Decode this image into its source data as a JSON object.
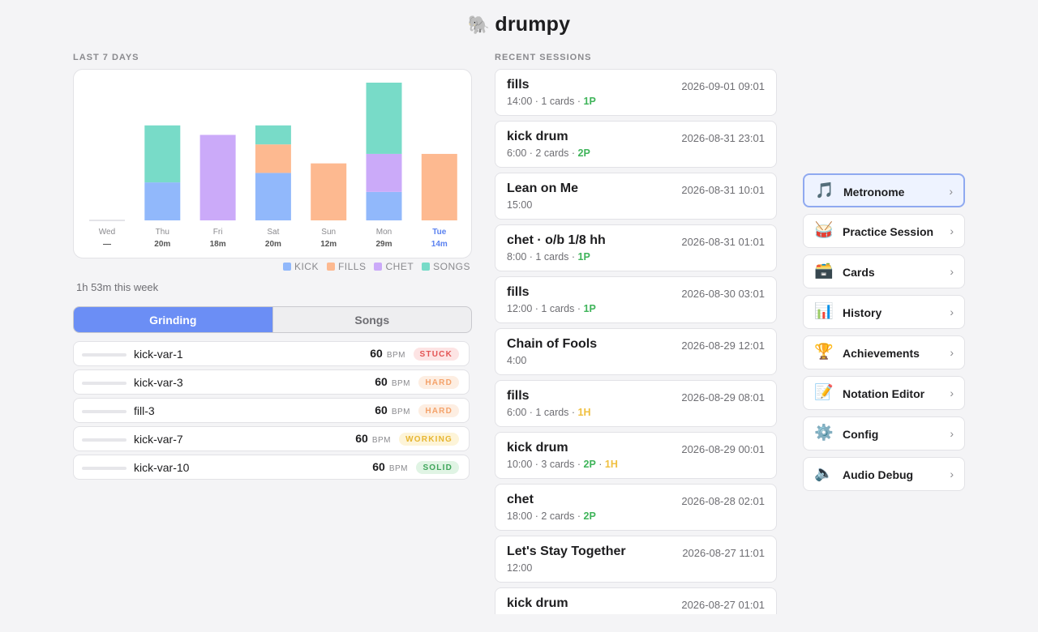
{
  "app": {
    "title": "drumpy",
    "logo_icon": "🐘"
  },
  "sections": {
    "last7": "LAST 7 DAYS",
    "recent": "RECENT SESSIONS"
  },
  "chart_data": {
    "type": "bar",
    "stacked": true,
    "categories": [
      "Wed",
      "Thu",
      "Fri",
      "Sat",
      "Sun",
      "Mon",
      "Tue"
    ],
    "totals": [
      "—",
      "20m",
      "18m",
      "20m",
      "12m",
      "29m",
      "14m"
    ],
    "highlight_category": "Tue",
    "series": [
      {
        "name": "KICK",
        "color": "#91b8fb",
        "values": [
          0,
          8,
          0,
          10,
          0,
          6,
          0
        ]
      },
      {
        "name": "FILLS",
        "color": "#fdb990",
        "values": [
          0,
          0,
          0,
          6,
          12,
          0,
          14
        ]
      },
      {
        "name": "CHET",
        "color": "#cbaaf9",
        "values": [
          0,
          0,
          18,
          0,
          0,
          8,
          0
        ]
      },
      {
        "name": "SONGS",
        "color": "#78dbc8",
        "values": [
          0,
          12,
          0,
          4,
          0,
          15,
          0
        ]
      }
    ],
    "ylim": [
      0,
      29
    ],
    "grid": false,
    "legend": "bottom-right"
  },
  "week_total": "1h 53m this week",
  "tabs": {
    "grinding": "Grinding",
    "songs": "Songs"
  },
  "grinding": [
    {
      "name": "kick-var-1",
      "bpm": "60",
      "unit": "BPM",
      "status": "STUCK",
      "kind": "stuck"
    },
    {
      "name": "kick-var-3",
      "bpm": "60",
      "unit": "BPM",
      "status": "HARD",
      "kind": "hard"
    },
    {
      "name": "fill-3",
      "bpm": "60",
      "unit": "BPM",
      "status": "HARD",
      "kind": "hard"
    },
    {
      "name": "kick-var-7",
      "bpm": "60",
      "unit": "BPM",
      "status": "WORKING",
      "kind": "working"
    },
    {
      "name": "kick-var-10",
      "bpm": "60",
      "unit": "BPM",
      "status": "SOLID",
      "kind": "solid"
    }
  ],
  "sessions": [
    {
      "title": "fills",
      "date": "2026-09-01 09:01",
      "meta": "14:00 · 1 cards",
      "tags": [
        {
          "text": "1P",
          "kind": "p"
        }
      ]
    },
    {
      "title": "kick drum",
      "date": "2026-08-31 23:01",
      "meta": "6:00 · 2 cards",
      "tags": [
        {
          "text": "2P",
          "kind": "p"
        }
      ]
    },
    {
      "title": "Lean on Me",
      "date": "2026-08-31 10:01",
      "meta": "15:00",
      "tags": []
    },
    {
      "title": "chet · o/b 1/8 hh",
      "date": "2026-08-31 01:01",
      "meta": "8:00 · 1 cards",
      "tags": [
        {
          "text": "1P",
          "kind": "p"
        }
      ]
    },
    {
      "title": "fills",
      "date": "2026-08-30 03:01",
      "meta": "12:00 · 1 cards",
      "tags": [
        {
          "text": "1P",
          "kind": "p"
        }
      ]
    },
    {
      "title": "Chain of Fools",
      "date": "2026-08-29 12:01",
      "meta": "4:00",
      "tags": []
    },
    {
      "title": "fills",
      "date": "2026-08-29 08:01",
      "meta": "6:00 · 1 cards",
      "tags": [
        {
          "text": "1H",
          "kind": "h"
        }
      ]
    },
    {
      "title": "kick drum",
      "date": "2026-08-29 00:01",
      "meta": "10:00 · 3 cards",
      "tags": [
        {
          "text": "2P",
          "kind": "p"
        },
        {
          "text": "1H",
          "kind": "h"
        }
      ]
    },
    {
      "title": "chet",
      "date": "2026-08-28 02:01",
      "meta": "18:00 · 2 cards",
      "tags": [
        {
          "text": "2P",
          "kind": "p"
        }
      ]
    },
    {
      "title": "Let's Stay Together",
      "date": "2026-08-27 11:01",
      "meta": "12:00",
      "tags": []
    },
    {
      "title": "kick drum",
      "date": "2026-08-27 01:01",
      "meta": "",
      "tags": []
    }
  ],
  "nav": [
    {
      "label": "Metronome",
      "icon": "🎵",
      "icon_name": "musical-note-icon",
      "active": true
    },
    {
      "label": "Practice Session",
      "icon": "🥁",
      "icon_name": "drum-icon",
      "active": false
    },
    {
      "label": "Cards",
      "icon": "🗃️",
      "icon_name": "card-box-icon",
      "active": false
    },
    {
      "label": "History",
      "icon": "📊",
      "icon_name": "bar-chart-icon",
      "active": false
    },
    {
      "label": "Achievements",
      "icon": "🏆",
      "icon_name": "trophy-icon",
      "active": false
    },
    {
      "label": "Notation Editor",
      "icon": "📝",
      "icon_name": "memo-icon",
      "active": false
    },
    {
      "label": "Config",
      "icon": "⚙️",
      "icon_name": "gear-icon",
      "active": false
    },
    {
      "label": "Audio Debug",
      "icon": "🔈",
      "icon_name": "speaker-icon",
      "active": false
    }
  ],
  "chevron": "›"
}
